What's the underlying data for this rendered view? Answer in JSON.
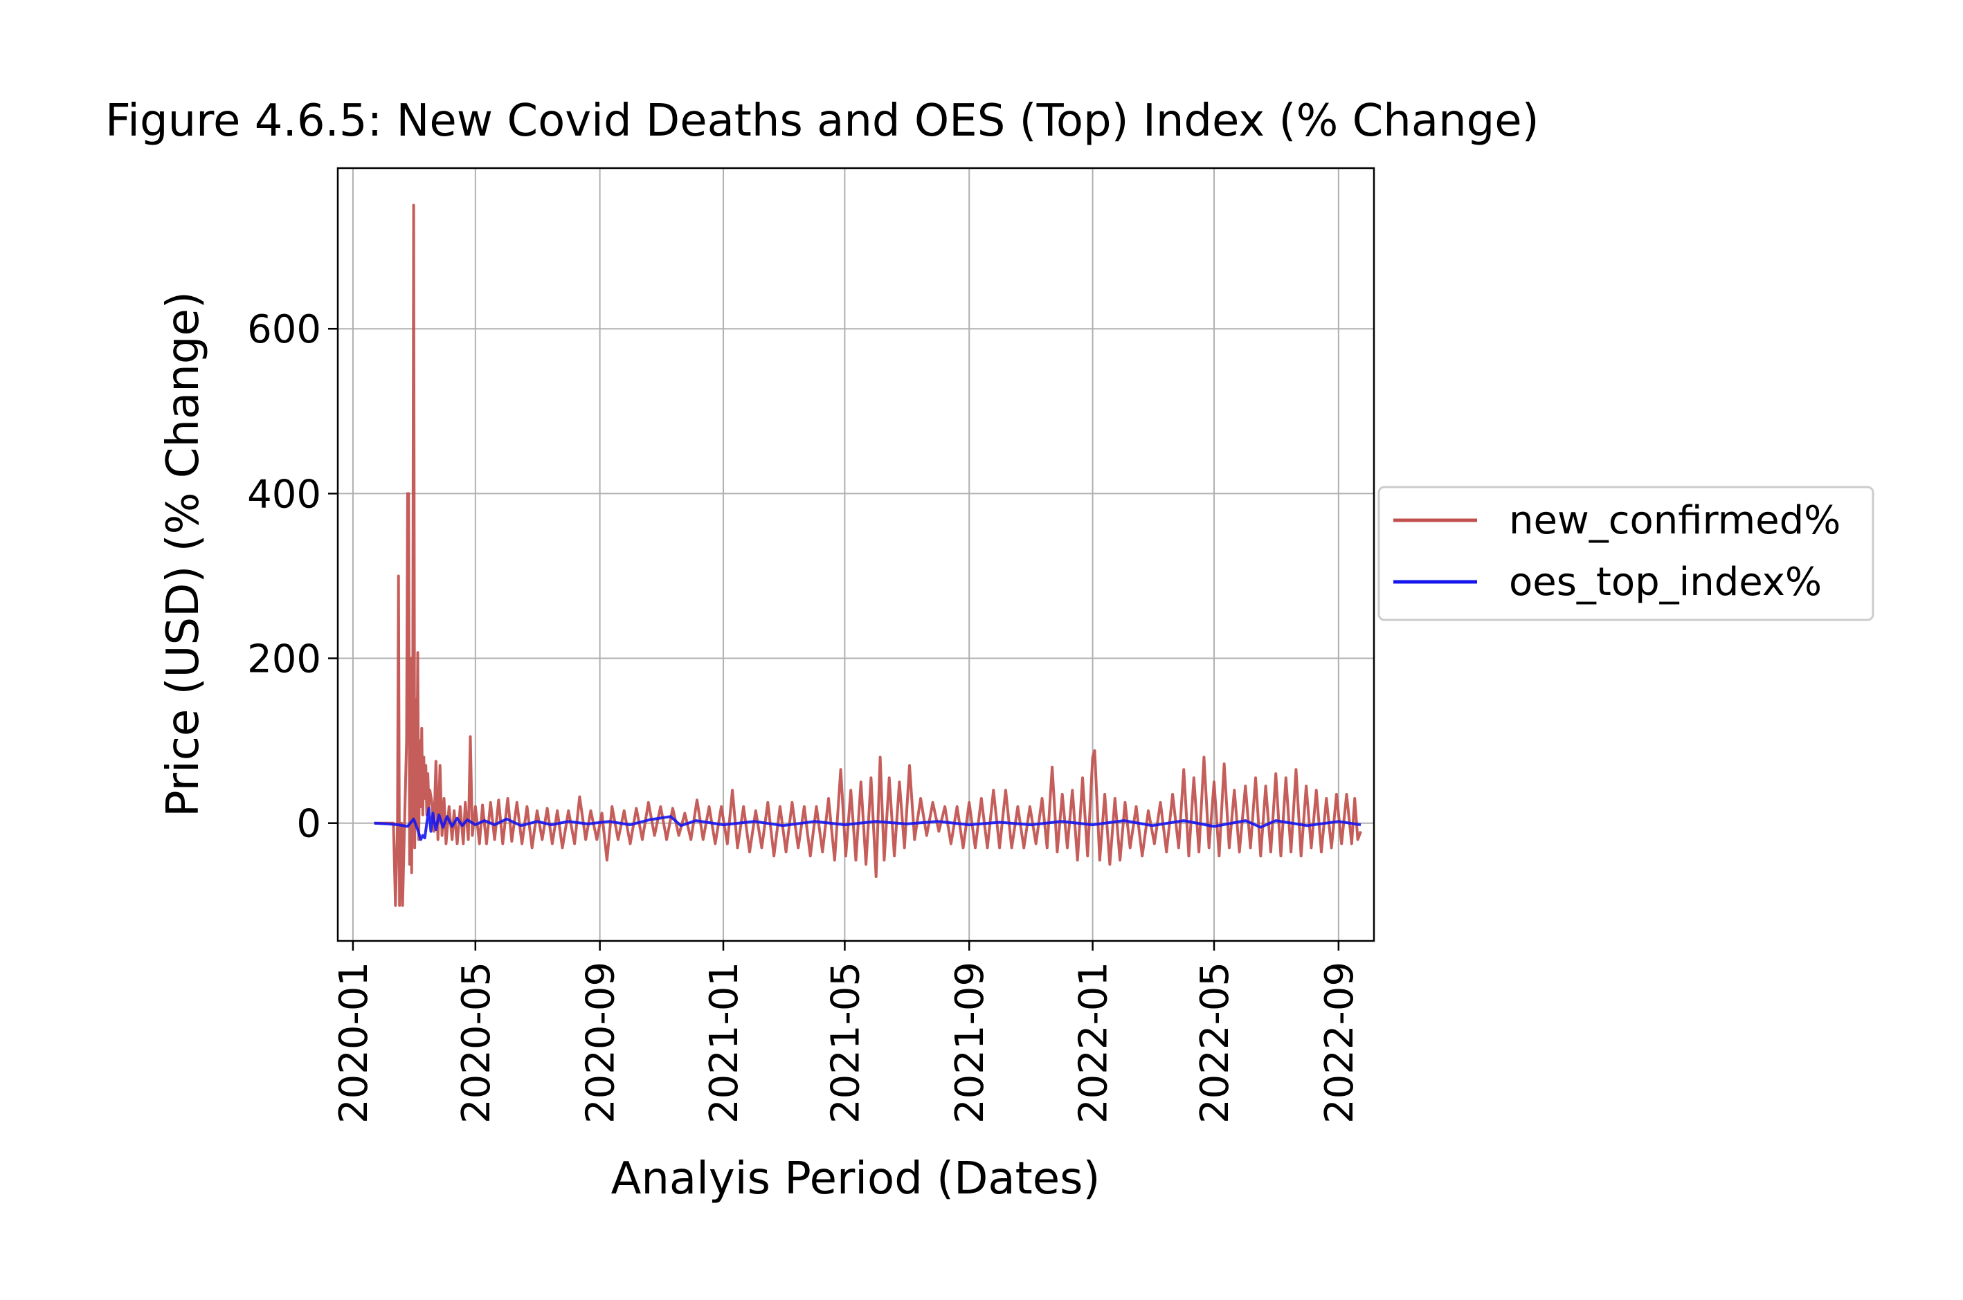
{
  "chart_data": {
    "type": "line",
    "title": "Figure 4.6.5: New Covid Deaths and OES (Top) Index (% Change)",
    "xlabel": "Analyis Period (Dates)",
    "ylabel": "Price (USD) (% Change)",
    "x_ticks": [
      "2020-01",
      "2020-05",
      "2020-09",
      "2021-01",
      "2021-05",
      "2021-09",
      "2022-01",
      "2022-05",
      "2022-09"
    ],
    "y_ticks": [
      0,
      200,
      400,
      600
    ],
    "xlim": [
      "2019-12-17",
      "2022-10-06"
    ],
    "ylim": [
      -143,
      795
    ],
    "grid": true,
    "legend_position": "center-right (outside plot)",
    "series": [
      {
        "name": "new_confirmed%",
        "color": "#c0504d",
        "points": [
          [
            "2020-01-22",
            0
          ],
          [
            "2020-02-10",
            0
          ],
          [
            "2020-02-11",
            -50
          ],
          [
            "2020-02-12",
            -100
          ],
          [
            "2020-02-14",
            0
          ],
          [
            "2020-02-15",
            300
          ],
          [
            "2020-02-16",
            -100
          ],
          [
            "2020-02-18",
            0
          ],
          [
            "2020-02-19",
            -100
          ],
          [
            "2020-02-21",
            0
          ],
          [
            "2020-02-23",
            100
          ],
          [
            "2020-02-24",
            400
          ],
          [
            "2020-02-25",
            400
          ],
          [
            "2020-02-26",
            -50
          ],
          [
            "2020-02-27",
            200
          ],
          [
            "2020-02-28",
            -60
          ],
          [
            "2020-02-29",
            100
          ],
          [
            "2020-03-01",
            750
          ],
          [
            "2020-03-02",
            -30
          ],
          [
            "2020-03-03",
            150
          ],
          [
            "2020-03-04",
            0
          ],
          [
            "2020-03-05",
            207
          ],
          [
            "2020-03-06",
            -20
          ],
          [
            "2020-03-07",
            100
          ],
          [
            "2020-03-08",
            20
          ],
          [
            "2020-03-09",
            115
          ],
          [
            "2020-03-10",
            10
          ],
          [
            "2020-03-11",
            80
          ],
          [
            "2020-03-12",
            30
          ],
          [
            "2020-03-13",
            70
          ],
          [
            "2020-03-14",
            10
          ],
          [
            "2020-03-15",
            60
          ],
          [
            "2020-03-16",
            20
          ],
          [
            "2020-03-17",
            40
          ],
          [
            "2020-03-19",
            25
          ],
          [
            "2020-03-21",
            -10
          ],
          [
            "2020-03-23",
            75
          ],
          [
            "2020-03-25",
            -20
          ],
          [
            "2020-03-27",
            70
          ],
          [
            "2020-03-29",
            -15
          ],
          [
            "2020-03-31",
            30
          ],
          [
            "2020-04-02",
            -25
          ],
          [
            "2020-04-05",
            20
          ],
          [
            "2020-04-08",
            -20
          ],
          [
            "2020-04-10",
            15
          ],
          [
            "2020-04-13",
            -25
          ],
          [
            "2020-04-16",
            20
          ],
          [
            "2020-04-19",
            -25
          ],
          [
            "2020-04-21",
            25
          ],
          [
            "2020-04-24",
            -20
          ],
          [
            "2020-04-26",
            105
          ],
          [
            "2020-04-28",
            -15
          ],
          [
            "2020-05-01",
            20
          ],
          [
            "2020-05-05",
            -25
          ],
          [
            "2020-05-08",
            22
          ],
          [
            "2020-05-12",
            -25
          ],
          [
            "2020-05-16",
            25
          ],
          [
            "2020-05-20",
            -20
          ],
          [
            "2020-05-24",
            28
          ],
          [
            "2020-05-28",
            -25
          ],
          [
            "2020-06-02",
            30
          ],
          [
            "2020-06-06",
            -22
          ],
          [
            "2020-06-11",
            25
          ],
          [
            "2020-06-16",
            -25
          ],
          [
            "2020-06-21",
            20
          ],
          [
            "2020-06-26",
            -30
          ],
          [
            "2020-07-01",
            15
          ],
          [
            "2020-07-06",
            -20
          ],
          [
            "2020-07-11",
            18
          ],
          [
            "2020-07-16",
            -25
          ],
          [
            "2020-07-21",
            15
          ],
          [
            "2020-07-26",
            -30
          ],
          [
            "2020-08-01",
            15
          ],
          [
            "2020-08-07",
            -25
          ],
          [
            "2020-08-12",
            32
          ],
          [
            "2020-08-18",
            -20
          ],
          [
            "2020-08-23",
            15
          ],
          [
            "2020-08-29",
            -20
          ],
          [
            "2020-09-03",
            12
          ],
          [
            "2020-09-08",
            -45
          ],
          [
            "2020-09-13",
            20
          ],
          [
            "2020-09-19",
            -20
          ],
          [
            "2020-09-25",
            15
          ],
          [
            "2020-10-01",
            -25
          ],
          [
            "2020-10-07",
            18
          ],
          [
            "2020-10-13",
            -20
          ],
          [
            "2020-10-19",
            25
          ],
          [
            "2020-10-25",
            -15
          ],
          [
            "2020-10-31",
            20
          ],
          [
            "2020-11-06",
            -20
          ],
          [
            "2020-11-12",
            18
          ],
          [
            "2020-11-18",
            -15
          ],
          [
            "2020-11-24",
            12
          ],
          [
            "2020-11-30",
            -20
          ],
          [
            "2020-12-06",
            28
          ],
          [
            "2020-12-12",
            -20
          ],
          [
            "2020-12-18",
            20
          ],
          [
            "2020-12-24",
            -25
          ],
          [
            "2020-12-30",
            20
          ],
          [
            "2021-01-05",
            -25
          ],
          [
            "2021-01-10",
            40
          ],
          [
            "2021-01-15",
            -30
          ],
          [
            "2021-01-21",
            20
          ],
          [
            "2021-01-27",
            -35
          ],
          [
            "2021-02-02",
            15
          ],
          [
            "2021-02-08",
            -30
          ],
          [
            "2021-02-14",
            25
          ],
          [
            "2021-02-20",
            -40
          ],
          [
            "2021-02-26",
            20
          ],
          [
            "2021-03-04",
            -35
          ],
          [
            "2021-03-10",
            25
          ],
          [
            "2021-03-16",
            -30
          ],
          [
            "2021-03-22",
            20
          ],
          [
            "2021-03-28",
            -40
          ],
          [
            "2021-04-03",
            20
          ],
          [
            "2021-04-09",
            -35
          ],
          [
            "2021-04-15",
            30
          ],
          [
            "2021-04-21",
            -45
          ],
          [
            "2021-04-27",
            65
          ],
          [
            "2021-05-02",
            -40
          ],
          [
            "2021-05-07",
            40
          ],
          [
            "2021-05-12",
            -45
          ],
          [
            "2021-05-17",
            50
          ],
          [
            "2021-05-22",
            -50
          ],
          [
            "2021-05-27",
            55
          ],
          [
            "2021-06-01",
            -65
          ],
          [
            "2021-06-05",
            80
          ],
          [
            "2021-06-09",
            -45
          ],
          [
            "2021-06-14",
            55
          ],
          [
            "2021-06-19",
            -40
          ],
          [
            "2021-06-24",
            50
          ],
          [
            "2021-06-29",
            -30
          ],
          [
            "2021-07-04",
            70
          ],
          [
            "2021-07-09",
            -20
          ],
          [
            "2021-07-15",
            30
          ],
          [
            "2021-07-21",
            -15
          ],
          [
            "2021-07-27",
            25
          ],
          [
            "2021-08-02",
            -10
          ],
          [
            "2021-08-08",
            20
          ],
          [
            "2021-08-14",
            -25
          ],
          [
            "2021-08-20",
            20
          ],
          [
            "2021-08-26",
            -30
          ],
          [
            "2021-09-01",
            25
          ],
          [
            "2021-09-07",
            -30
          ],
          [
            "2021-09-13",
            30
          ],
          [
            "2021-09-19",
            -30
          ],
          [
            "2021-09-25",
            40
          ],
          [
            "2021-10-01",
            -30
          ],
          [
            "2021-10-07",
            40
          ],
          [
            "2021-10-13",
            -30
          ],
          [
            "2021-10-19",
            20
          ],
          [
            "2021-10-25",
            -30
          ],
          [
            "2021-10-31",
            20
          ],
          [
            "2021-11-06",
            -25
          ],
          [
            "2021-11-12",
            30
          ],
          [
            "2021-11-17",
            -30
          ],
          [
            "2021-11-22",
            68
          ],
          [
            "2021-11-27",
            -35
          ],
          [
            "2021-12-02",
            35
          ],
          [
            "2021-12-07",
            -30
          ],
          [
            "2021-12-12",
            40
          ],
          [
            "2021-12-17",
            -45
          ],
          [
            "2021-12-22",
            55
          ],
          [
            "2021-12-27",
            -40
          ],
          [
            "2022-01-01",
            80
          ],
          [
            "2022-01-03",
            88
          ],
          [
            "2022-01-08",
            -45
          ],
          [
            "2022-01-13",
            35
          ],
          [
            "2022-01-18",
            -50
          ],
          [
            "2022-01-23",
            30
          ],
          [
            "2022-01-28",
            -45
          ],
          [
            "2022-02-02",
            25
          ],
          [
            "2022-02-07",
            -30
          ],
          [
            "2022-02-13",
            20
          ],
          [
            "2022-02-19",
            -40
          ],
          [
            "2022-02-25",
            15
          ],
          [
            "2022-03-03",
            -25
          ],
          [
            "2022-03-09",
            25
          ],
          [
            "2022-03-15",
            -35
          ],
          [
            "2022-03-21",
            35
          ],
          [
            "2022-03-27",
            -30
          ],
          [
            "2022-04-01",
            65
          ],
          [
            "2022-04-06",
            -40
          ],
          [
            "2022-04-11",
            55
          ],
          [
            "2022-04-16",
            -35
          ],
          [
            "2022-04-21",
            80
          ],
          [
            "2022-04-26",
            -30
          ],
          [
            "2022-05-01",
            50
          ],
          [
            "2022-05-06",
            -40
          ],
          [
            "2022-05-11",
            72
          ],
          [
            "2022-05-16",
            -30
          ],
          [
            "2022-05-21",
            40
          ],
          [
            "2022-05-26",
            -35
          ],
          [
            "2022-06-01",
            45
          ],
          [
            "2022-06-06",
            -30
          ],
          [
            "2022-06-11",
            55
          ],
          [
            "2022-06-16",
            -40
          ],
          [
            "2022-06-21",
            45
          ],
          [
            "2022-06-26",
            -35
          ],
          [
            "2022-07-01",
            60
          ],
          [
            "2022-07-06",
            -40
          ],
          [
            "2022-07-11",
            55
          ],
          [
            "2022-07-16",
            -35
          ],
          [
            "2022-07-21",
            65
          ],
          [
            "2022-07-26",
            -40
          ],
          [
            "2022-07-31",
            45
          ],
          [
            "2022-08-05",
            -30
          ],
          [
            "2022-08-10",
            40
          ],
          [
            "2022-08-15",
            -35
          ],
          [
            "2022-08-20",
            30
          ],
          [
            "2022-08-25",
            -30
          ],
          [
            "2022-08-30",
            35
          ],
          [
            "2022-09-04",
            -25
          ],
          [
            "2022-09-09",
            35
          ],
          [
            "2022-09-14",
            -25
          ],
          [
            "2022-09-17",
            30
          ],
          [
            "2022-09-20",
            -20
          ],
          [
            "2022-09-23",
            -10
          ]
        ]
      },
      {
        "name": "oes_top_index%",
        "color": "#1515ee",
        "points": [
          [
            "2020-01-22",
            0
          ],
          [
            "2020-02-05",
            -1
          ],
          [
            "2020-02-15",
            -2
          ],
          [
            "2020-02-24",
            -4
          ],
          [
            "2020-03-01",
            5
          ],
          [
            "2020-03-05",
            -8
          ],
          [
            "2020-03-08",
            -20
          ],
          [
            "2020-03-10",
            -15
          ],
          [
            "2020-03-12",
            -18
          ],
          [
            "2020-03-14",
            0
          ],
          [
            "2020-03-16",
            18
          ],
          [
            "2020-03-18",
            -10
          ],
          [
            "2020-03-20",
            12
          ],
          [
            "2020-03-23",
            -8
          ],
          [
            "2020-03-26",
            10
          ],
          [
            "2020-03-30",
            -5
          ],
          [
            "2020-04-03",
            8
          ],
          [
            "2020-04-08",
            -4
          ],
          [
            "2020-04-13",
            6
          ],
          [
            "2020-04-18",
            -3
          ],
          [
            "2020-04-23",
            4
          ],
          [
            "2020-05-01",
            -2
          ],
          [
            "2020-05-10",
            3
          ],
          [
            "2020-05-20",
            -2
          ],
          [
            "2020-06-01",
            5
          ],
          [
            "2020-06-15",
            -3
          ],
          [
            "2020-07-01",
            2
          ],
          [
            "2020-07-15",
            -2
          ],
          [
            "2020-08-01",
            2
          ],
          [
            "2020-08-20",
            -1
          ],
          [
            "2020-09-10",
            2
          ],
          [
            "2020-10-01",
            -2
          ],
          [
            "2020-10-20",
            4
          ],
          [
            "2020-11-10",
            8
          ],
          [
            "2020-11-20",
            -3
          ],
          [
            "2020-12-05",
            3
          ],
          [
            "2021-01-01",
            -2
          ],
          [
            "2021-02-01",
            2
          ],
          [
            "2021-03-01",
            -3
          ],
          [
            "2021-04-01",
            2
          ],
          [
            "2021-05-01",
            -2
          ],
          [
            "2021-06-01",
            2
          ],
          [
            "2021-07-01",
            -1
          ],
          [
            "2021-08-01",
            2
          ],
          [
            "2021-09-01",
            -2
          ],
          [
            "2021-10-01",
            1
          ],
          [
            "2021-11-01",
            -2
          ],
          [
            "2021-12-01",
            2
          ],
          [
            "2022-01-01",
            -2
          ],
          [
            "2022-02-01",
            3
          ],
          [
            "2022-03-01",
            -3
          ],
          [
            "2022-04-01",
            3
          ],
          [
            "2022-05-01",
            -4
          ],
          [
            "2022-06-01",
            3
          ],
          [
            "2022-06-16",
            -5
          ],
          [
            "2022-07-01",
            3
          ],
          [
            "2022-08-01",
            -3
          ],
          [
            "2022-09-01",
            2
          ],
          [
            "2022-09-23",
            -2
          ]
        ]
      }
    ]
  }
}
